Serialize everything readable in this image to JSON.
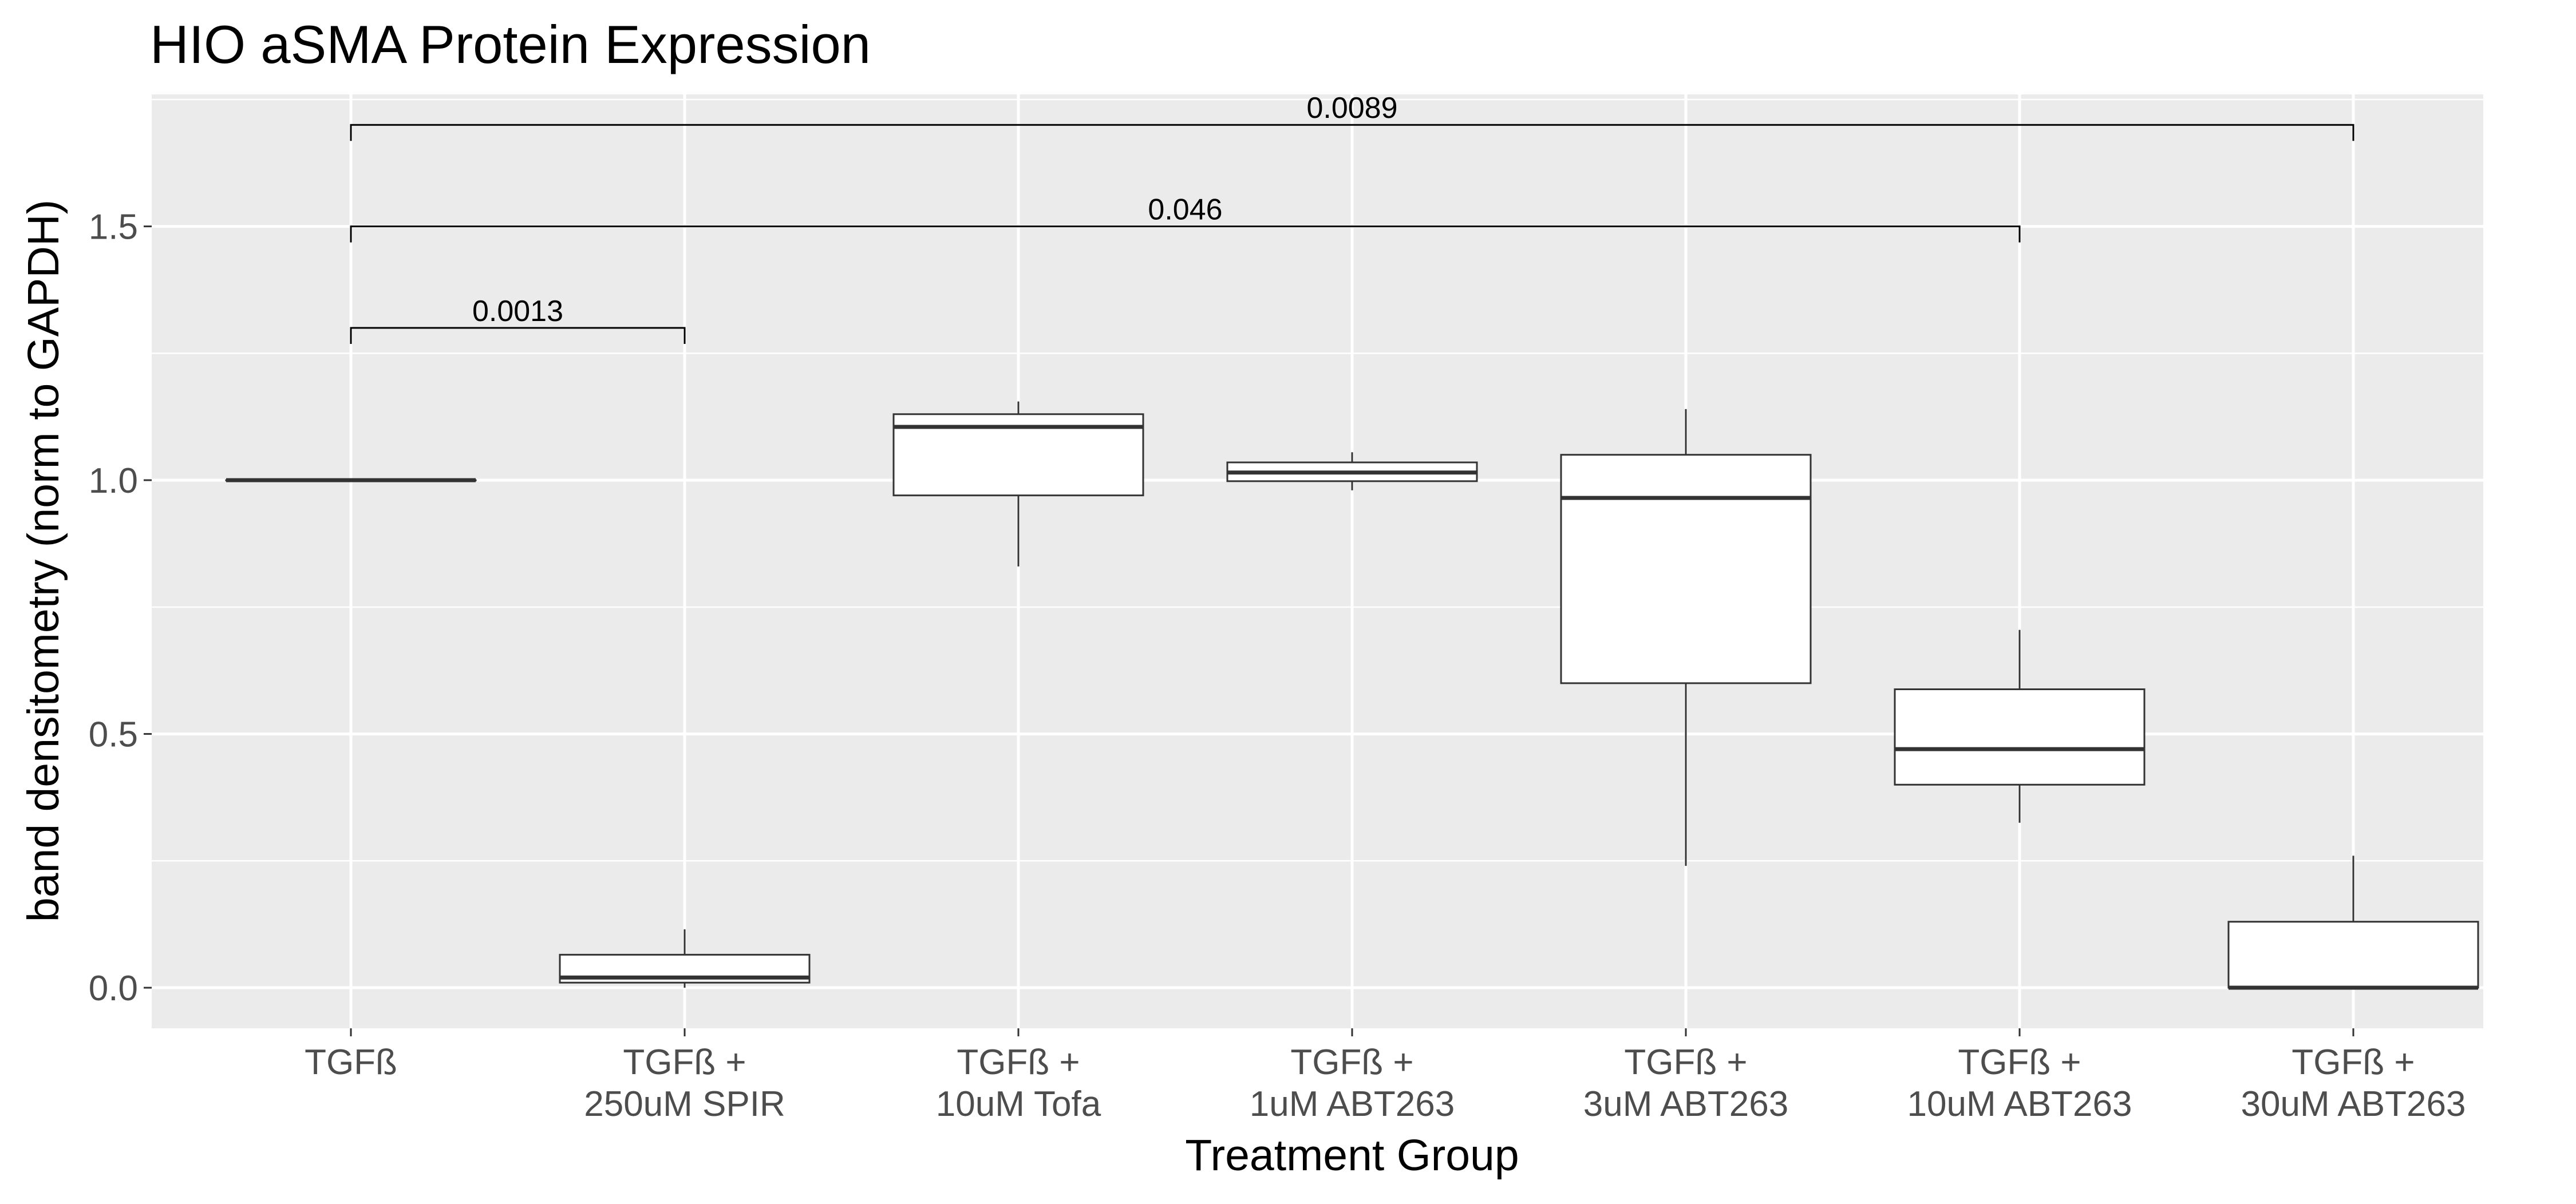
{
  "chart_data": {
    "type": "box",
    "title": "HIO aSMA Protein Expression",
    "xlabel": "Treatment Group",
    "ylabel": "band densitometry (norm to GAPDH)",
    "ylim": [
      -0.08,
      1.76
    ],
    "yticks": [
      0.0,
      0.5,
      1.0,
      1.5
    ],
    "ytick_labels": [
      "0.0",
      "0.5",
      "1.0",
      "1.5"
    ],
    "grid": true,
    "background": "#ebebeb",
    "categories": [
      {
        "line1": "TGFß",
        "line2": ""
      },
      {
        "line1": "TGFß +",
        "line2": "250uM SPIR"
      },
      {
        "line1": "TGFß +",
        "line2": "10uM Tofa"
      },
      {
        "line1": "TGFß +",
        "line2": "1uM ABT263"
      },
      {
        "line1": "TGFß +",
        "line2": "3uM ABT263"
      },
      {
        "line1": "TGFß +",
        "line2": "10uM ABT263"
      },
      {
        "line1": "TGFß +",
        "line2": "30uM ABT263"
      }
    ],
    "boxes": [
      {
        "whisker_low": 1.0,
        "q1": 1.0,
        "median": 1.0,
        "q3": 1.0,
        "whisker_high": 1.0
      },
      {
        "whisker_low": 0.0,
        "q1": 0.01,
        "median": 0.02,
        "q3": 0.065,
        "whisker_high": 0.115
      },
      {
        "whisker_low": 0.83,
        "q1": 0.97,
        "median": 1.105,
        "q3": 1.13,
        "whisker_high": 1.155
      },
      {
        "whisker_low": 0.98,
        "q1": 0.998,
        "median": 1.015,
        "q3": 1.035,
        "whisker_high": 1.055
      },
      {
        "whisker_low": 0.24,
        "q1": 0.6,
        "median": 0.965,
        "q3": 1.05,
        "whisker_high": 1.14
      },
      {
        "whisker_low": 0.325,
        "q1": 0.4,
        "median": 0.47,
        "q3": 0.588,
        "whisker_high": 0.705
      },
      {
        "whisker_low": 0.0,
        "q1": 0.0,
        "median": 0.0,
        "q3": 0.13,
        "whisker_high": 0.26
      }
    ],
    "comparisons": [
      {
        "from": 0,
        "to": 1,
        "y": 1.3,
        "label": "0.0013"
      },
      {
        "from": 0,
        "to": 5,
        "y": 1.5,
        "label": "0.046"
      },
      {
        "from": 0,
        "to": 6,
        "y": 1.7,
        "label": "0.0089"
      }
    ]
  }
}
